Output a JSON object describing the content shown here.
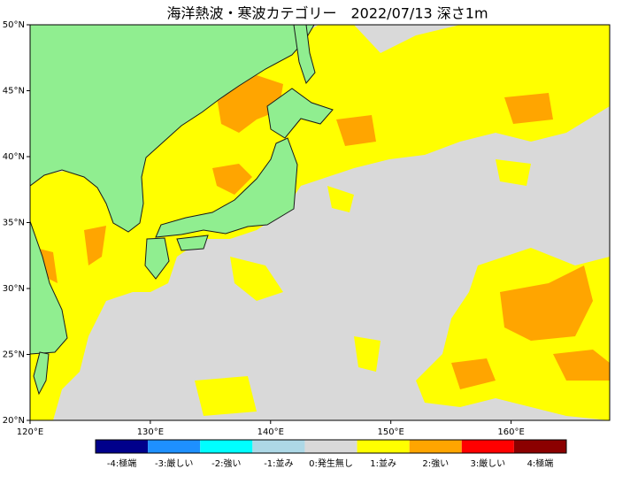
{
  "map": {
    "title": "海洋熱波・寒波カテゴリー　2022/07/13 深さ1m",
    "xlim": [
      120,
      168.2
    ],
    "ylim": [
      20,
      50
    ],
    "lon_ticks": [
      {
        "value": 120,
        "label": "120°E"
      },
      {
        "value": 130,
        "label": "130°E"
      },
      {
        "value": 140,
        "label": "140°E"
      },
      {
        "value": 150,
        "label": "150°E"
      },
      {
        "value": 160,
        "label": "160°E"
      }
    ],
    "lat_ticks": [
      {
        "value": 20,
        "label": "20°N"
      },
      {
        "value": 25,
        "label": "25°N"
      },
      {
        "value": 30,
        "label": "30°N"
      },
      {
        "value": 35,
        "label": "35°N"
      },
      {
        "value": 40,
        "label": "40°N"
      },
      {
        "value": 45,
        "label": "45°N"
      },
      {
        "value": 50,
        "label": "50°N"
      }
    ],
    "colorbar": [
      {
        "label": "-4:極端",
        "color": "#00008b"
      },
      {
        "label": "-3:厳しい",
        "color": "#1e90ff"
      },
      {
        "label": "-2:強い",
        "color": "#00ffff"
      },
      {
        "label": "-1:並み",
        "color": "#add8e6"
      },
      {
        "label": "0:発生無し",
        "color": "#d9d9d9"
      },
      {
        "label": "1:並み",
        "color": "#ffff00"
      },
      {
        "label": "2:強い",
        "color": "#ffa500"
      },
      {
        "label": "3:厳しい",
        "color": "#ff0000"
      },
      {
        "label": "4:極端",
        "color": "#8b0000"
      }
    ]
  }
}
